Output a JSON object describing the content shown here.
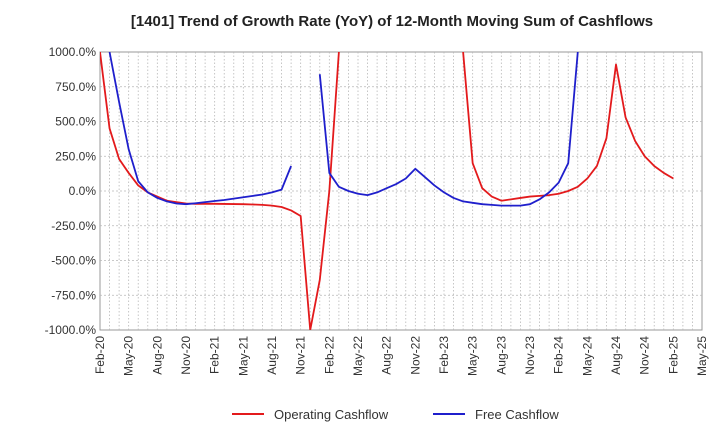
{
  "chart_data": {
    "type": "line",
    "title": "[1401]  Trend of Growth Rate (YoY) of 12-Month Moving Sum of Cashflows",
    "xlabel": "",
    "ylabel": "",
    "ylim": [
      -1000,
      1000
    ],
    "y_ticks": [
      "1000.0%",
      "750.0%",
      "500.0%",
      "250.0%",
      "0.0%",
      "-250.0%",
      "-500.0%",
      "-750.0%",
      "-1000.0%"
    ],
    "x_ticks": [
      "Feb-20",
      "May-20",
      "Aug-20",
      "Nov-20",
      "Feb-21",
      "May-21",
      "Aug-21",
      "Nov-21",
      "Feb-22",
      "May-22",
      "Aug-22",
      "Nov-22",
      "Feb-23",
      "May-23",
      "Aug-23",
      "Nov-23",
      "Feb-24",
      "May-24",
      "Aug-24",
      "Nov-24",
      "Feb-25",
      "May-25"
    ],
    "grid": true,
    "legend_position": "bottom",
    "series": [
      {
        "name": "Operating Cashflow",
        "color": "#e31a1c",
        "points": [
          [
            0,
            1000
          ],
          [
            1,
            450
          ],
          [
            2,
            230
          ],
          [
            3,
            130
          ],
          [
            4,
            40
          ],
          [
            5,
            -10
          ],
          [
            6,
            -40
          ],
          [
            7,
            -70
          ],
          [
            8,
            -80
          ],
          [
            9,
            -90
          ],
          [
            10,
            -92
          ],
          [
            11,
            -92
          ],
          [
            12,
            -92
          ],
          [
            13,
            -93
          ],
          [
            14,
            -94
          ],
          [
            15,
            -95
          ],
          [
            16,
            -97
          ],
          [
            17,
            -100
          ],
          [
            18,
            -105
          ],
          [
            19,
            -115
          ],
          [
            20,
            -140
          ],
          [
            21,
            -180
          ],
          [
            22,
            -1000
          ],
          [
            23,
            -640
          ],
          [
            24,
            0
          ],
          [
            25,
            1000
          ],
          [
            26,
            null
          ],
          [
            38,
            null
          ],
          [
            38,
            1000
          ],
          [
            39,
            200
          ],
          [
            40,
            20
          ],
          [
            41,
            -40
          ],
          [
            42,
            -70
          ],
          [
            43,
            -60
          ],
          [
            44,
            -50
          ],
          [
            45,
            -40
          ],
          [
            46,
            -35
          ],
          [
            47,
            -30
          ],
          [
            48,
            -20
          ],
          [
            49,
            0
          ],
          [
            50,
            30
          ],
          [
            51,
            90
          ],
          [
            52,
            180
          ],
          [
            53,
            380
          ],
          [
            54,
            910
          ],
          [
            55,
            530
          ],
          [
            56,
            360
          ],
          [
            57,
            250
          ],
          [
            58,
            180
          ],
          [
            59,
            130
          ],
          [
            60,
            90
          ]
        ]
      },
      {
        "name": "Free Cashflow",
        "color": "#1f1fcc",
        "points": [
          [
            1,
            1000
          ],
          [
            2,
            640
          ],
          [
            3,
            300
          ],
          [
            4,
            70
          ],
          [
            5,
            -10
          ],
          [
            6,
            -50
          ],
          [
            7,
            -75
          ],
          [
            8,
            -90
          ],
          [
            9,
            -95
          ],
          [
            10,
            -88
          ],
          [
            11,
            -80
          ],
          [
            12,
            -72
          ],
          [
            13,
            -65
          ],
          [
            14,
            -55
          ],
          [
            15,
            -45
          ],
          [
            16,
            -35
          ],
          [
            17,
            -25
          ],
          [
            18,
            -10
          ],
          [
            19,
            10
          ],
          [
            20,
            180
          ],
          [
            21,
            null
          ],
          [
            23,
            null
          ],
          [
            23,
            840
          ],
          [
            24,
            130
          ],
          [
            25,
            30
          ],
          [
            26,
            0
          ],
          [
            27,
            -20
          ],
          [
            28,
            -30
          ],
          [
            29,
            -10
          ],
          [
            30,
            20
          ],
          [
            31,
            50
          ],
          [
            32,
            90
          ],
          [
            33,
            160
          ],
          [
            34,
            100
          ],
          [
            35,
            40
          ],
          [
            36,
            -10
          ],
          [
            37,
            -50
          ],
          [
            38,
            -75
          ],
          [
            39,
            -85
          ],
          [
            40,
            -95
          ],
          [
            41,
            -100
          ],
          [
            42,
            -105
          ],
          [
            43,
            -105
          ],
          [
            44,
            -105
          ],
          [
            45,
            -95
          ],
          [
            46,
            -60
          ],
          [
            47,
            -10
          ],
          [
            48,
            60
          ],
          [
            49,
            200
          ],
          [
            50,
            1000
          ]
        ]
      }
    ],
    "x_series_note": ""
  }
}
